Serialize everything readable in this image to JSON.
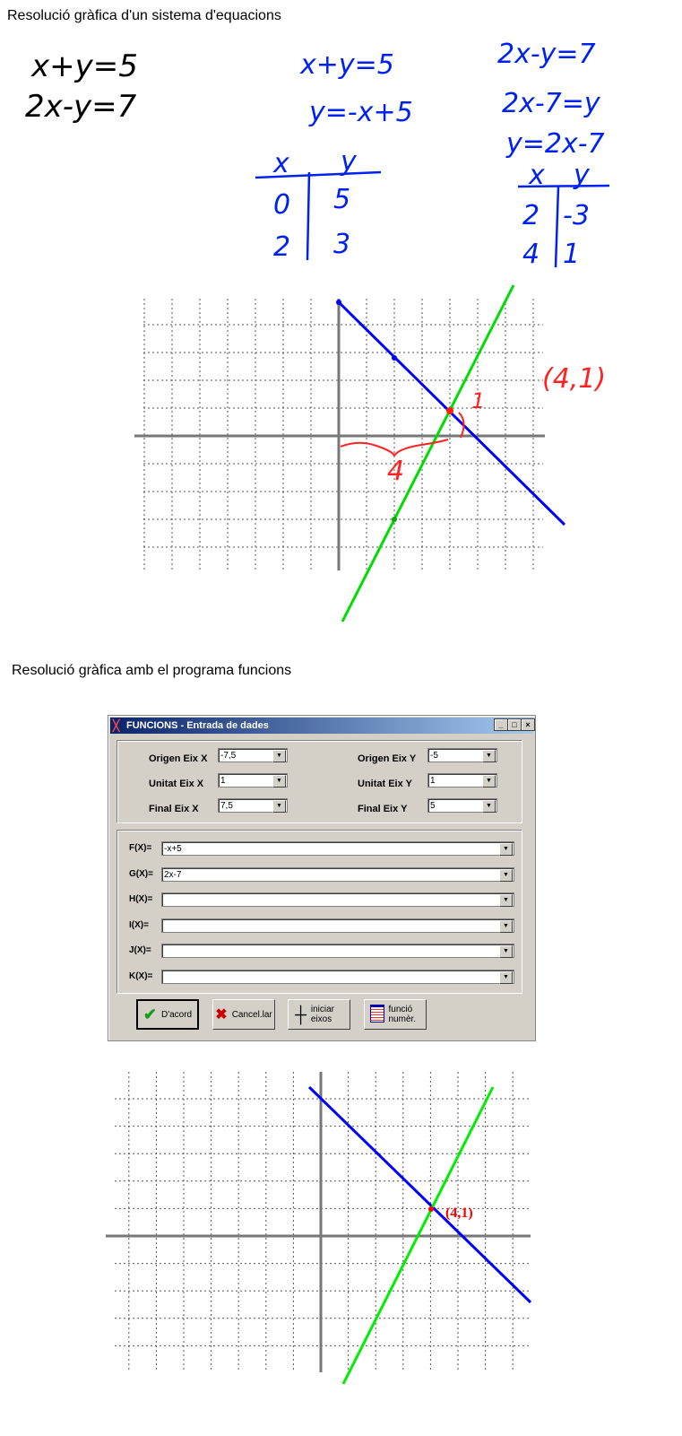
{
  "heading1": "Resolució gràfica d'un sistema d'equacions",
  "heading2": "Resolució gràfica amb el programa funcions",
  "handwriting": {
    "system": [
      "x+y=5",
      "2x-y=7"
    ],
    "eq1": [
      "x+y=5",
      "y=-x+5"
    ],
    "table1": {
      "headers": [
        "x",
        "y"
      ],
      "rows": [
        [
          "0",
          "5"
        ],
        [
          "2",
          "3"
        ]
      ]
    },
    "eq2": [
      "2x-y=7",
      "2x-7=y",
      "y=2x-7"
    ],
    "table2": {
      "headers": [
        "x",
        "y"
      ],
      "rows": [
        [
          "2",
          "-3"
        ],
        [
          "4",
          "1"
        ]
      ]
    },
    "point_label": "(4,1)",
    "x_label": "4",
    "y_label": "1"
  },
  "colors": {
    "line_f": "#0000ff",
    "line_g": "#00dd00",
    "annotation": "#ff0000"
  },
  "dialog": {
    "title": "FUNCIONS - Entrada de dades",
    "title_buttons": [
      "_",
      "□",
      "×"
    ],
    "axes": [
      {
        "label": "Origen Eix X",
        "value": "-7,5"
      },
      {
        "label": "Origen Eix Y",
        "value": "-5"
      },
      {
        "label": "Unitat Eix X",
        "value": "1"
      },
      {
        "label": "Unitat Eix Y",
        "value": "1"
      },
      {
        "label": "Final Eix X",
        "value": "7,5"
      },
      {
        "label": "Final Eix Y",
        "value": "5"
      }
    ],
    "functions": [
      {
        "label": "F(X)=",
        "value": "-x+5"
      },
      {
        "label": "G(X)=",
        "value": "2x-7"
      },
      {
        "label": "H(X)=",
        "value": ""
      },
      {
        "label": "I(X)=",
        "value": ""
      },
      {
        "label": "J(X)=",
        "value": ""
      },
      {
        "label": "K(X)=",
        "value": ""
      }
    ],
    "buttons": [
      {
        "label": "D'acord",
        "icon": "check-icon"
      },
      {
        "label": "Cancel.lar",
        "icon": "x-icon"
      },
      {
        "label": "iniciar eixos",
        "icon": "axes-icon"
      },
      {
        "label": "funció numèr.",
        "icon": "table-icon"
      }
    ]
  },
  "graph2": {
    "point_label": "(4,1)"
  },
  "chart_data": [
    {
      "type": "line",
      "xlim": [
        -7.5,
        7.5
      ],
      "ylim": [
        -5,
        5
      ],
      "grid": true,
      "series": [
        {
          "values": "y=-x+5"
        },
        {
          "values": "y=2x-7"
        }
      ],
      "points": [
        [
          0,
          5
        ],
        [
          2,
          3
        ],
        [
          2,
          -3
        ],
        [
          4,
          1
        ]
      ],
      "intersection": [
        4,
        1
      ]
    },
    {
      "type": "line",
      "xlim": [
        -7.5,
        7.5
      ],
      "ylim": [
        -5,
        5
      ],
      "grid": true,
      "series": [
        {
          "values": "y=-x+5"
        },
        {
          "values": "y=2x-7"
        }
      ],
      "intersection": [
        4,
        1
      ]
    }
  ]
}
